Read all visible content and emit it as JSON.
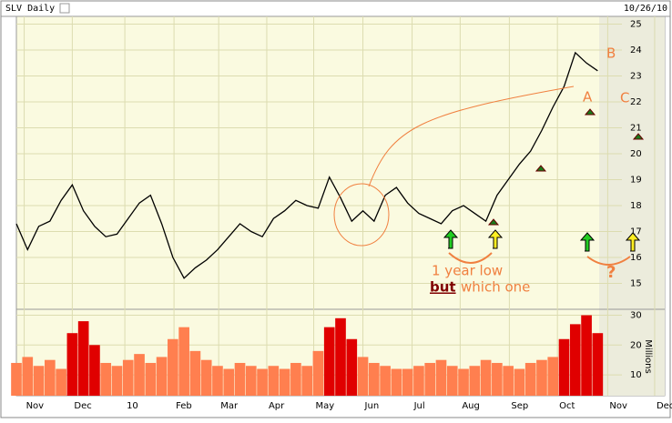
{
  "chart_data": {
    "type": "line",
    "title": "SLV Daily",
    "date": "10/26/10",
    "x": [
      0,
      1,
      2,
      3,
      4,
      5,
      6,
      7,
      8,
      9,
      10,
      11,
      12,
      13,
      14,
      15,
      16,
      17,
      18,
      19,
      20,
      21,
      22,
      23,
      24,
      25,
      26,
      27,
      28,
      29,
      30,
      31,
      32,
      33,
      34,
      35,
      36,
      37,
      38,
      39,
      40,
      41,
      42,
      43,
      44,
      45,
      46,
      47,
      48,
      49,
      50,
      51,
      52
    ],
    "series": [
      {
        "color": "#000000",
        "values": [
          17.3,
          16.3,
          17.2,
          17.4,
          18.2,
          18.8,
          17.8,
          17.2,
          16.8,
          16.9,
          17.5,
          18.1,
          18.4,
          17.3,
          16.0,
          15.2,
          15.6,
          15.9,
          16.3,
          16.8,
          17.3,
          17.0,
          16.8,
          17.5,
          17.8,
          18.2,
          18.0,
          17.9,
          19.1,
          18.3,
          17.4,
          17.8,
          17.4,
          18.4,
          18.7,
          18.1,
          17.7,
          17.5,
          17.3,
          17.8,
          18.0,
          17.7,
          17.4,
          18.4,
          19.0,
          19.6,
          20.1,
          20.9,
          21.8,
          22.6,
          23.9,
          23.5,
          23.2
        ]
      }
    ],
    "volume": {
      "label": "Millions",
      "values": [
        14,
        16,
        13,
        15,
        12,
        24,
        28,
        20,
        14,
        13,
        15,
        17,
        14,
        16,
        22,
        26,
        18,
        15,
        13,
        12,
        14,
        13,
        12,
        13,
        12,
        14,
        13,
        18,
        26,
        29,
        22,
        16,
        14,
        13,
        12,
        12,
        13,
        14,
        15,
        13,
        12,
        13,
        15,
        14,
        13,
        12,
        14,
        15,
        16,
        22,
        27,
        30,
        24
      ],
      "bar_colors": [
        "#ff7f4f",
        "#ff7f4f",
        "#ff7f4f",
        "#ff7f4f",
        "#ff7f4f",
        "#e00000",
        "#e00000",
        "#e00000",
        "#ff7f4f",
        "#ff7f4f",
        "#ff7f4f",
        "#ff7f4f",
        "#ff7f4f",
        "#ff7f4f",
        "#ff7f4f",
        "#ff7f4f",
        "#ff7f4f",
        "#ff7f4f",
        "#ff7f4f",
        "#ff7f4f",
        "#ff7f4f",
        "#ff7f4f",
        "#ff7f4f",
        "#ff7f4f",
        "#ff7f4f",
        "#ff7f4f",
        "#ff7f4f",
        "#ff7f4f",
        "#e00000",
        "#e00000",
        "#e00000",
        "#ff7f4f",
        "#ff7f4f",
        "#ff7f4f",
        "#ff7f4f",
        "#ff7f4f",
        "#ff7f4f",
        "#ff7f4f",
        "#ff7f4f",
        "#ff7f4f",
        "#ff7f4f",
        "#ff7f4f",
        "#ff7f4f",
        "#ff7f4f",
        "#ff7f4f",
        "#ff7f4f",
        "#ff7f4f",
        "#ff7f4f",
        "#ff7f4f",
        "#e00000",
        "#e00000",
        "#e00000",
        "#e00000"
      ],
      "ylim": [
        3,
        32
      ],
      "yticks": [
        10,
        20,
        30
      ]
    },
    "xlim": [
      0,
      58
    ],
    "xticks": [
      {
        "value": 0.7,
        "label": "Nov"
      },
      {
        "value": 5,
        "label": "Dec"
      },
      {
        "value": 9.7,
        "label": "10"
      },
      {
        "value": 14.1,
        "label": "Feb"
      },
      {
        "value": 18.1,
        "label": "Mar"
      },
      {
        "value": 22.4,
        "label": "Apr"
      },
      {
        "value": 26.6,
        "label": "May"
      },
      {
        "value": 31,
        "label": "Jun"
      },
      {
        "value": 35.4,
        "label": "Jul"
      },
      {
        "value": 39.7,
        "label": "Aug"
      },
      {
        "value": 44.1,
        "label": "Sep"
      },
      {
        "value": 48.4,
        "label": "Oct"
      },
      {
        "value": 52.9,
        "label": "Nov"
      },
      {
        "value": 57.1,
        "label": "Dec"
      }
    ],
    "ylim": [
      14,
      25.3
    ],
    "yticks": [
      15,
      16,
      17,
      18,
      19,
      20,
      21,
      22,
      23,
      24,
      25
    ],
    "grid": true,
    "annotations": [
      "B",
      "A",
      "C",
      "1 year low",
      "but",
      "which one",
      "?"
    ]
  }
}
